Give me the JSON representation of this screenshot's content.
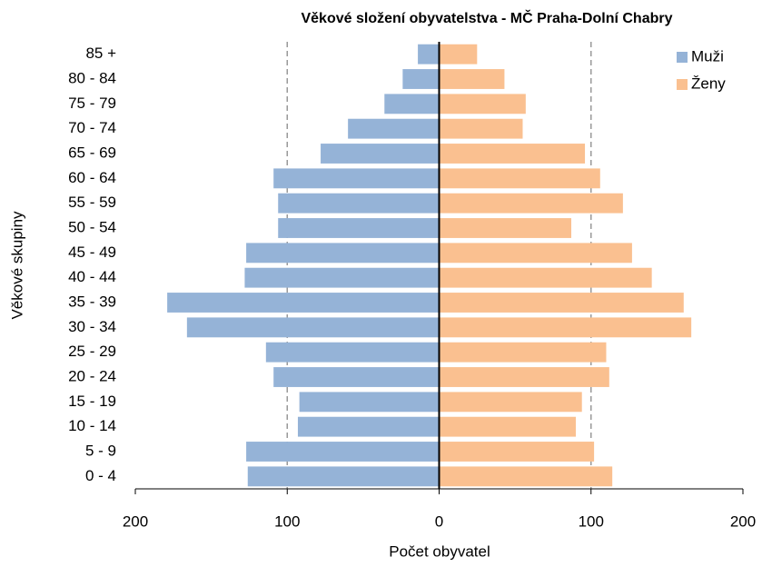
{
  "chart_data": {
    "type": "bar",
    "orientation": "horizontal",
    "title": "Věkové složení obyvatelstva - MČ Praha-Dolní Chabry",
    "x_label": "Počet obyvatel",
    "y_label": "Věkové skupiny",
    "categories": [
      "0 - 4",
      "5 - 9",
      "10 - 14",
      "15 - 19",
      "20 - 24",
      "25 - 29",
      "30 - 34",
      "35 - 39",
      "40 - 44",
      "45 - 49",
      "50 - 54",
      "55 - 59",
      "60 - 64",
      "65 - 69",
      "70 - 74",
      "75 - 79",
      "80 - 84",
      "85 +"
    ],
    "series": [
      {
        "name": "Muži",
        "color": "#95b3d7",
        "values": [
          -126,
          -127,
          -93,
          -92,
          -109,
          -114,
          -166,
          -179,
          -128,
          -127,
          -106,
          -106,
          -109,
          -78,
          -60,
          -36,
          -24,
          -14
        ]
      },
      {
        "name": "Ženy",
        "color": "#fac090",
        "values": [
          114,
          102,
          90,
          94,
          112,
          110,
          166,
          161,
          140,
          127,
          87,
          121,
          106,
          96,
          55,
          57,
          43,
          25
        ]
      }
    ],
    "xlim": [
      -200,
      200
    ],
    "xticks": [
      {
        "value": -200,
        "label": "200"
      },
      {
        "value": -100,
        "label": "100"
      },
      0,
      100,
      200
    ],
    "grid": true,
    "legend": "top-right"
  }
}
